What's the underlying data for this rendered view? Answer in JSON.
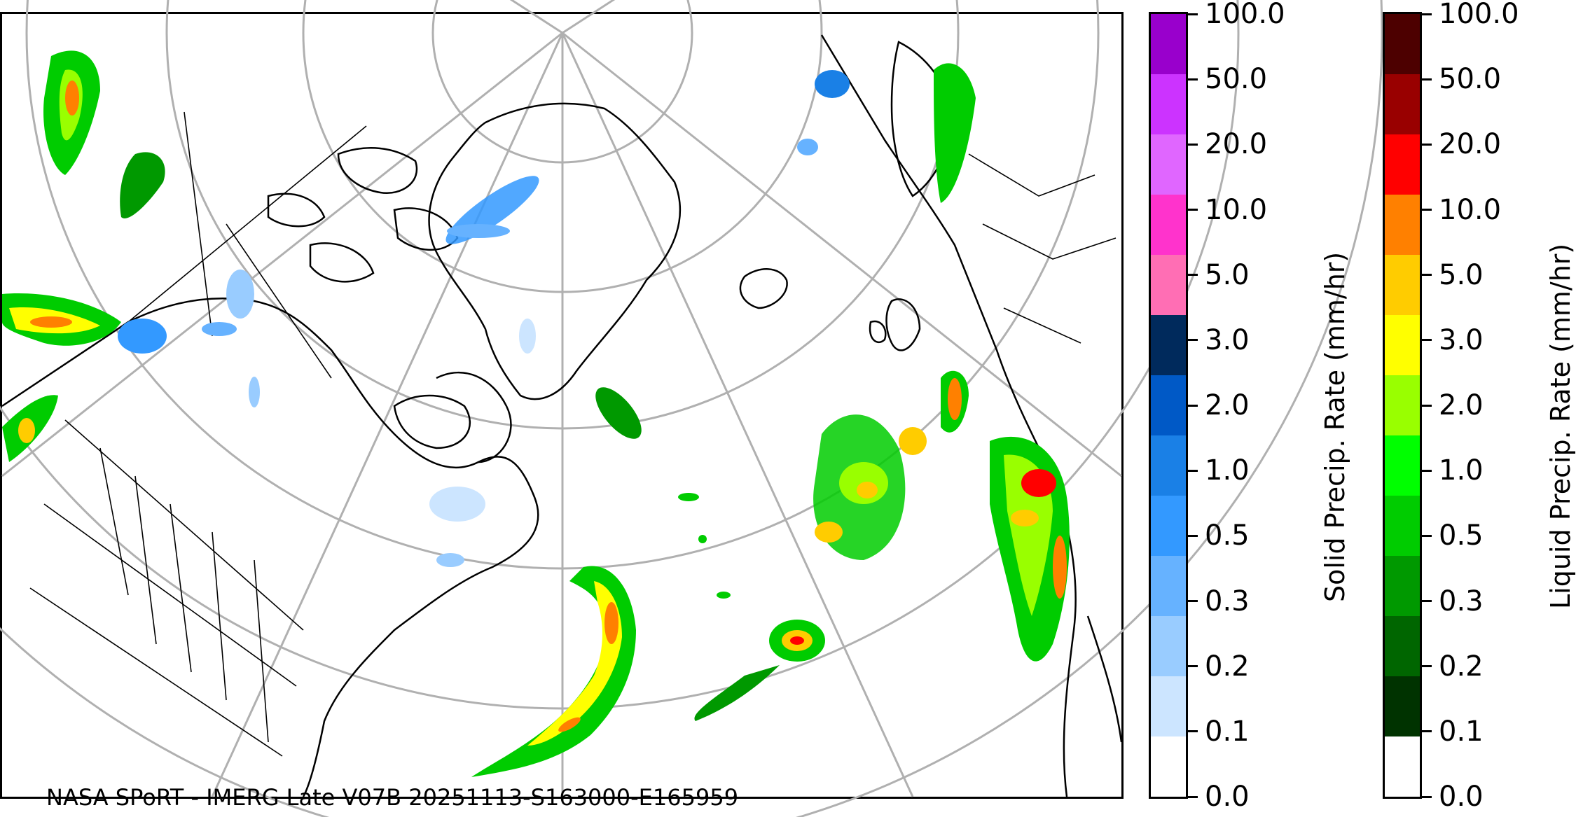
{
  "map": {
    "credit": "NASA SPoRT - IMERG Late V07B 20251113-S163000-E165959"
  },
  "colorbars": {
    "ticks": [
      "0.0",
      "0.1",
      "0.2",
      "0.3",
      "0.5",
      "1.0",
      "2.0",
      "3.0",
      "5.0",
      "10.0",
      "20.0",
      "50.0",
      "100.0"
    ],
    "solid": {
      "title": "Solid Precip. Rate (mm/hr)",
      "colors": [
        "#ffffff",
        "#cce5ff",
        "#99ccff",
        "#66b2ff",
        "#3399ff",
        "#1a80e6",
        "#0059c6",
        "#002a5c",
        "#ff6eb4",
        "#ff33cc",
        "#e066ff",
        "#cc33ff",
        "#9900cc"
      ]
    },
    "liquid": {
      "title": "Liquid Precip. Rate (mm/hr)",
      "colors": [
        "#ffffff",
        "#003300",
        "#006600",
        "#009900",
        "#00cc00",
        "#00ff00",
        "#99ff00",
        "#ffff00",
        "#ffcc00",
        "#ff8000",
        "#ff0000",
        "#990000",
        "#4d0000"
      ]
    }
  }
}
